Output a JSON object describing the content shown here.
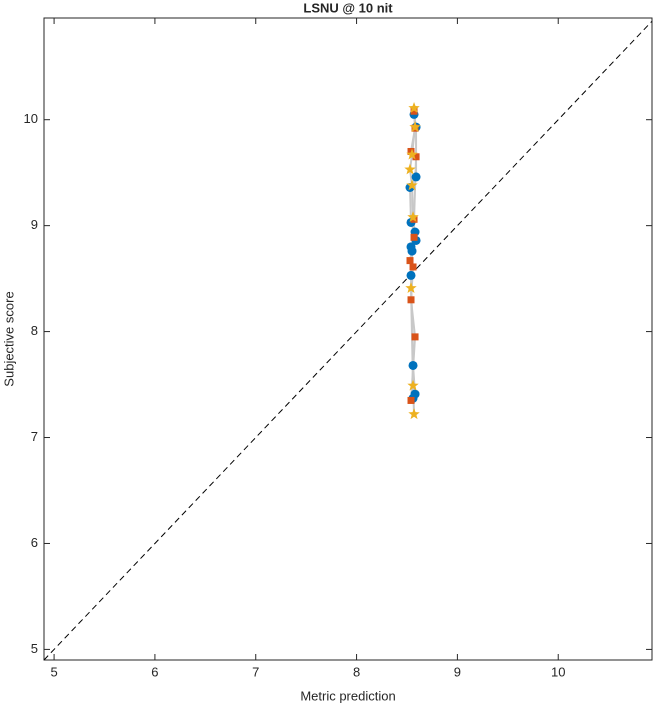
{
  "chart_data": {
    "type": "scatter",
    "title": "LSNU @ 10 nit",
    "x_label": "Metric prediction",
    "y_label": "Subjective score",
    "xlim": [
      4.9,
      10.93
    ],
    "ylim": [
      4.9,
      10.96
    ],
    "xticks": [
      5,
      6,
      7,
      8,
      9,
      10
    ],
    "yticks": [
      5,
      6,
      7,
      8,
      9,
      10
    ],
    "identity_line": true,
    "connector_color": "#c8c8c8",
    "series": [
      {
        "color": "#0072bd",
        "marker": "circle",
        "x": [
          8.57,
          8.59,
          8.59,
          8.53,
          8.54,
          8.58,
          8.59,
          8.54,
          8.55,
          8.54,
          8.56,
          8.58,
          8.56
        ],
        "values": [
          10.05,
          9.93,
          9.46,
          9.36,
          9.03,
          8.94,
          8.86,
          8.8,
          8.76,
          8.53,
          7.68,
          7.41,
          7.37
        ]
      },
      {
        "color": "#d95319",
        "marker": "square",
        "x": [
          8.57,
          8.58,
          8.54,
          8.59,
          8.57,
          8.57,
          8.53,
          8.56,
          8.54,
          8.58,
          8.54
        ],
        "values": [
          10.08,
          9.92,
          9.7,
          9.65,
          9.06,
          8.89,
          8.67,
          8.61,
          8.3,
          7.95,
          7.35
        ]
      },
      {
        "color": "#edb120",
        "marker": "star",
        "x": [
          8.57,
          8.58,
          8.55,
          8.53,
          8.55,
          8.56,
          8.54,
          8.56,
          8.57
        ],
        "values": [
          10.11,
          9.93,
          9.67,
          9.53,
          9.38,
          9.08,
          8.41,
          7.49,
          7.22
        ]
      }
    ]
  }
}
